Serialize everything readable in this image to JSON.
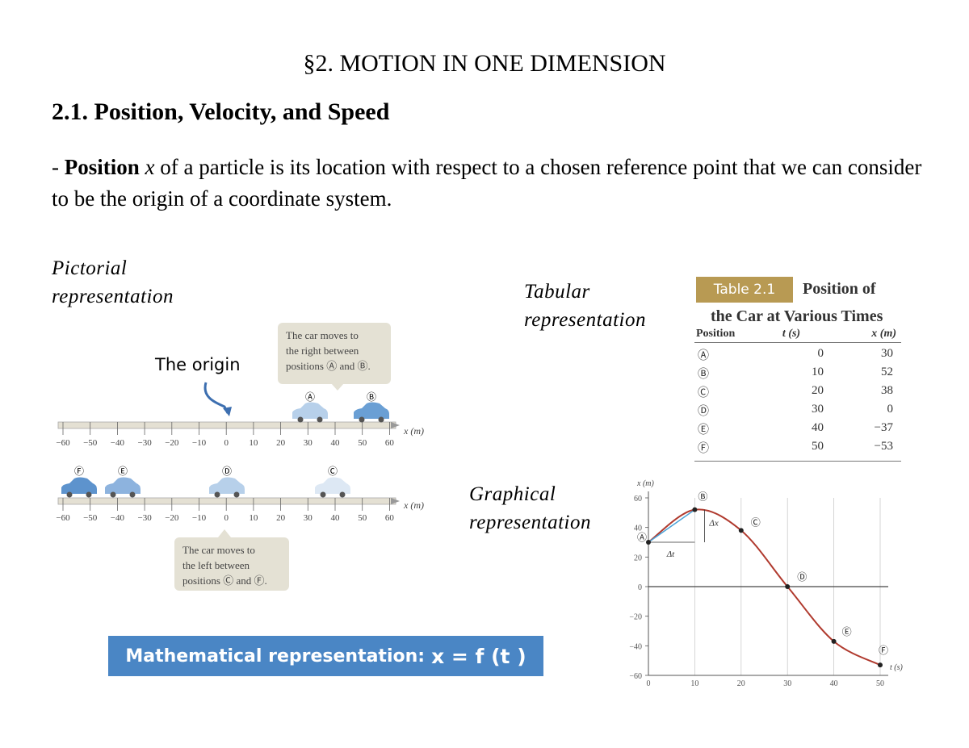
{
  "heading": {
    "section": "§2. MOTION IN ONE DIMENSION",
    "subsection": "2.1. Position, Velocity, and Speed"
  },
  "definition": {
    "prefix": "- ",
    "term": "Position",
    "symbol": "x",
    "text": " of a particle is its location with respect to a chosen reference point that we can consider to be the origin of a coordinate system."
  },
  "labels": {
    "pictorial": [
      "Pictorial",
      "representation"
    ],
    "tabular": [
      "Tabular",
      "representation"
    ],
    "graphical": [
      "Graphical",
      "representation"
    ],
    "origin": "The origin",
    "math_prefix": "Mathematical representation:",
    "math_eq": "x = f (t )"
  },
  "pictorial": {
    "callout_right": [
      "The car moves to",
      "the right between",
      "positions Ⓐ and Ⓑ."
    ],
    "callout_left": [
      "The car moves to",
      "the left between",
      "positions Ⓒ and Ⓕ."
    ],
    "axis_label": "x (m)",
    "ticks": [
      "−60",
      "−50",
      "−40",
      "−30",
      "−20",
      "−10",
      "0",
      "10",
      "20",
      "30",
      "40",
      "50",
      "60"
    ],
    "top_cars": [
      "Ⓐ",
      "Ⓑ"
    ],
    "bottom_cars": [
      "Ⓕ",
      "Ⓔ",
      "Ⓓ",
      "Ⓒ"
    ],
    "car_color": "#6a9fd4"
  },
  "table": {
    "badge": "Table 2.1",
    "title1": "Position of",
    "title2": "the Car at Various Times",
    "headers": [
      "Position",
      "t (s)",
      "x (m)"
    ],
    "rows": [
      {
        "pos": "Ⓐ",
        "t": "0",
        "x": "30"
      },
      {
        "pos": "Ⓑ",
        "t": "10",
        "x": "52"
      },
      {
        "pos": "Ⓒ",
        "t": "20",
        "x": "38"
      },
      {
        "pos": "Ⓓ",
        "t": "30",
        "x": "0"
      },
      {
        "pos": "Ⓔ",
        "t": "40",
        "x": "−37"
      },
      {
        "pos": "Ⓕ",
        "t": "50",
        "x": "−53"
      }
    ],
    "badge_color": "#b89a53"
  },
  "chart_data": {
    "type": "line",
    "xlabel": "t (s)",
    "ylabel": "x (m)",
    "xlim": [
      0,
      50
    ],
    "ylim": [
      -60,
      60
    ],
    "xticks": [
      "0",
      "10",
      "20",
      "30",
      "40",
      "50"
    ],
    "yticks": [
      "60",
      "40",
      "20",
      "0",
      "−20",
      "−40",
      "−60"
    ],
    "points": [
      {
        "label": "Ⓐ",
        "t": 0,
        "x": 30
      },
      {
        "label": "Ⓑ",
        "t": 10,
        "x": 52
      },
      {
        "label": "Ⓒ",
        "t": 20,
        "x": 38
      },
      {
        "label": "Ⓓ",
        "t": 30,
        "x": 0
      },
      {
        "label": "Ⓔ",
        "t": 40,
        "x": -37
      },
      {
        "label": "Ⓕ",
        "t": 50,
        "x": -53
      }
    ],
    "annotations": [
      "Δx",
      "Δt"
    ],
    "curve_color": "#b03a2e",
    "secant_color": "#4aa3d8"
  },
  "colors": {
    "math_box": "#4a86c5",
    "callout_bg": "#e4e1d4",
    "origin_arrow": "#3d6fb0"
  }
}
